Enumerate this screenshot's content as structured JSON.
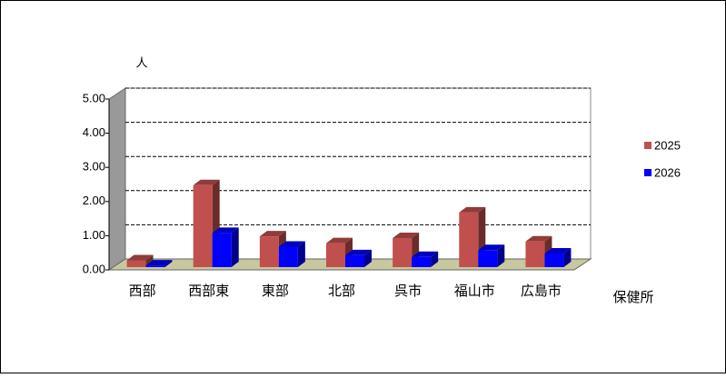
{
  "chart_data": {
    "type": "bar3d",
    "y_label": "人",
    "x_label": "保健所",
    "categories": [
      "西部",
      "西部東",
      "東部",
      "北部",
      "呉市",
      "福山市",
      "広島市"
    ],
    "series": [
      {
        "name": "2025",
        "color": "#c0504d",
        "values": [
          0.2,
          2.4,
          0.9,
          0.7,
          0.85,
          1.6,
          0.75
        ]
      },
      {
        "name": "2026",
        "color": "#0000ff",
        "values": [
          0.05,
          1.0,
          0.6,
          0.35,
          0.3,
          0.5,
          0.4
        ]
      }
    ],
    "ylim": [
      0,
      5
    ],
    "yticks": [
      {
        "value": 0,
        "label": "0.00"
      },
      {
        "value": 1,
        "label": "1.00"
      },
      {
        "value": 2,
        "label": "2.00"
      },
      {
        "value": 3,
        "label": "3.00"
      },
      {
        "value": 4,
        "label": "4.00"
      },
      {
        "value": 5,
        "label": "5.00"
      }
    ],
    "grid": true,
    "legend": "right"
  }
}
